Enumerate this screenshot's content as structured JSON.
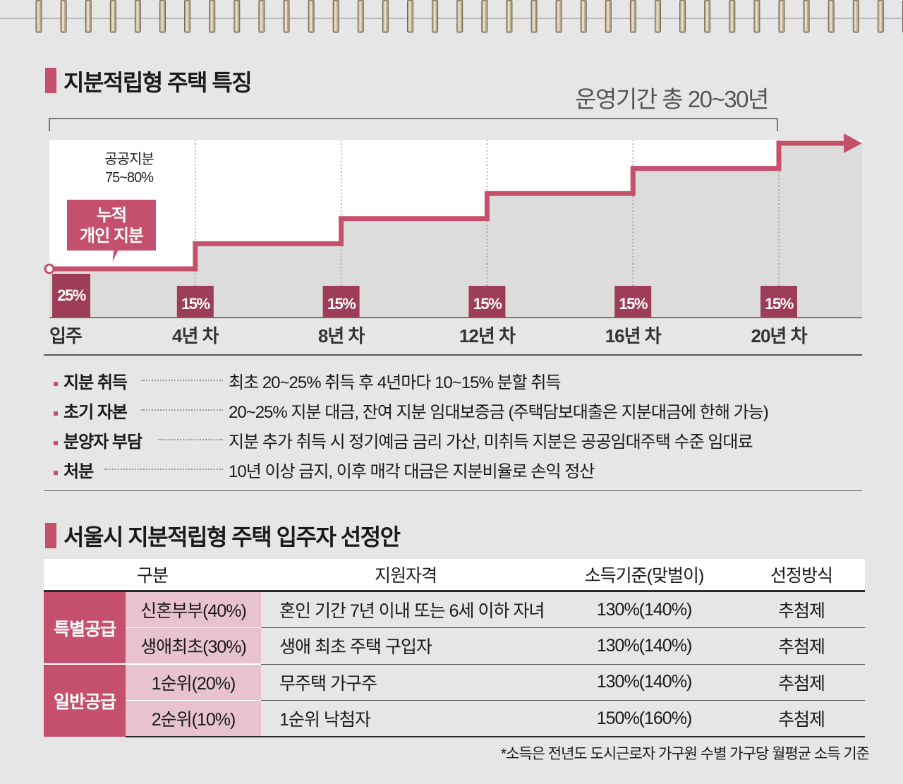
{
  "section1": {
    "title": "지분적립형 주택 특징",
    "period_label": "운영기간 총 20~30년"
  },
  "chart_data": {
    "type": "line",
    "title": "",
    "x": [
      "입주",
      "4년 차",
      "8년 차",
      "12년 차",
      "16년 차",
      "20년 차"
    ],
    "series": [
      {
        "name": "누적 개인 지분",
        "values": [
          25,
          40,
          55,
          70,
          85,
          100
        ]
      }
    ],
    "step_labels": [
      "25%",
      "15%",
      "15%",
      "15%",
      "15%",
      "15%"
    ],
    "public_share_label": "공공지분\n75~80%",
    "callout": "누적\n개인 지분",
    "ylim": [
      0,
      100
    ],
    "grid": "vertical dashed",
    "accent_color": "#c4506e",
    "dark_accent_color": "#9e3d57"
  },
  "features": [
    {
      "label": "지분 취득",
      "desc": "최초 20~25% 취득 후  4년마다 10~15% 분할 취득"
    },
    {
      "label": "초기 자본",
      "desc": "20~25% 지분 대금, 잔여 지분 임대보증금 (주택담보대출은 지분대금에 한해 가능)"
    },
    {
      "label": "분양자 부담",
      "desc": "지분 추가 취득 시 정기예금 금리 가산, 미취득 지분은 공공임대주택 수준 임대료"
    },
    {
      "label": "처분",
      "desc": "10년 이상 금지, 이후 매각 대금은 지분비율로 손익 정산"
    }
  ],
  "section2": {
    "title": "서울시 지분적립형 주택 입주자 선정안",
    "headers": [
      "구분",
      "지원자격",
      "소득기준(맞벌이)",
      "선정방식"
    ],
    "groups": [
      {
        "category": "특별공급",
        "rows": [
          {
            "sub": "신혼부부(40%)",
            "qual": "혼인 기간 7년 이내 또는 6세 이하 자녀",
            "income": "130%(140%)",
            "method": "추첨제"
          },
          {
            "sub": "생애최초(30%)",
            "qual": "생애 최초 주택 구입자",
            "income": "130%(140%)",
            "method": "추첨제"
          }
        ]
      },
      {
        "category": "일반공급",
        "rows": [
          {
            "sub": "1순위(20%)",
            "qual": "무주택 가구주",
            "income": "130%(140%)",
            "method": "추첨제"
          },
          {
            "sub": "2순위(10%)",
            "qual": "1순위 낙첨자",
            "income": "150%(160%)",
            "method": "추첨제"
          }
        ]
      }
    ],
    "footnote": "*소득은 전년도 도시근로자 가구원 수별 가구당 월평균 소득 기준"
  }
}
